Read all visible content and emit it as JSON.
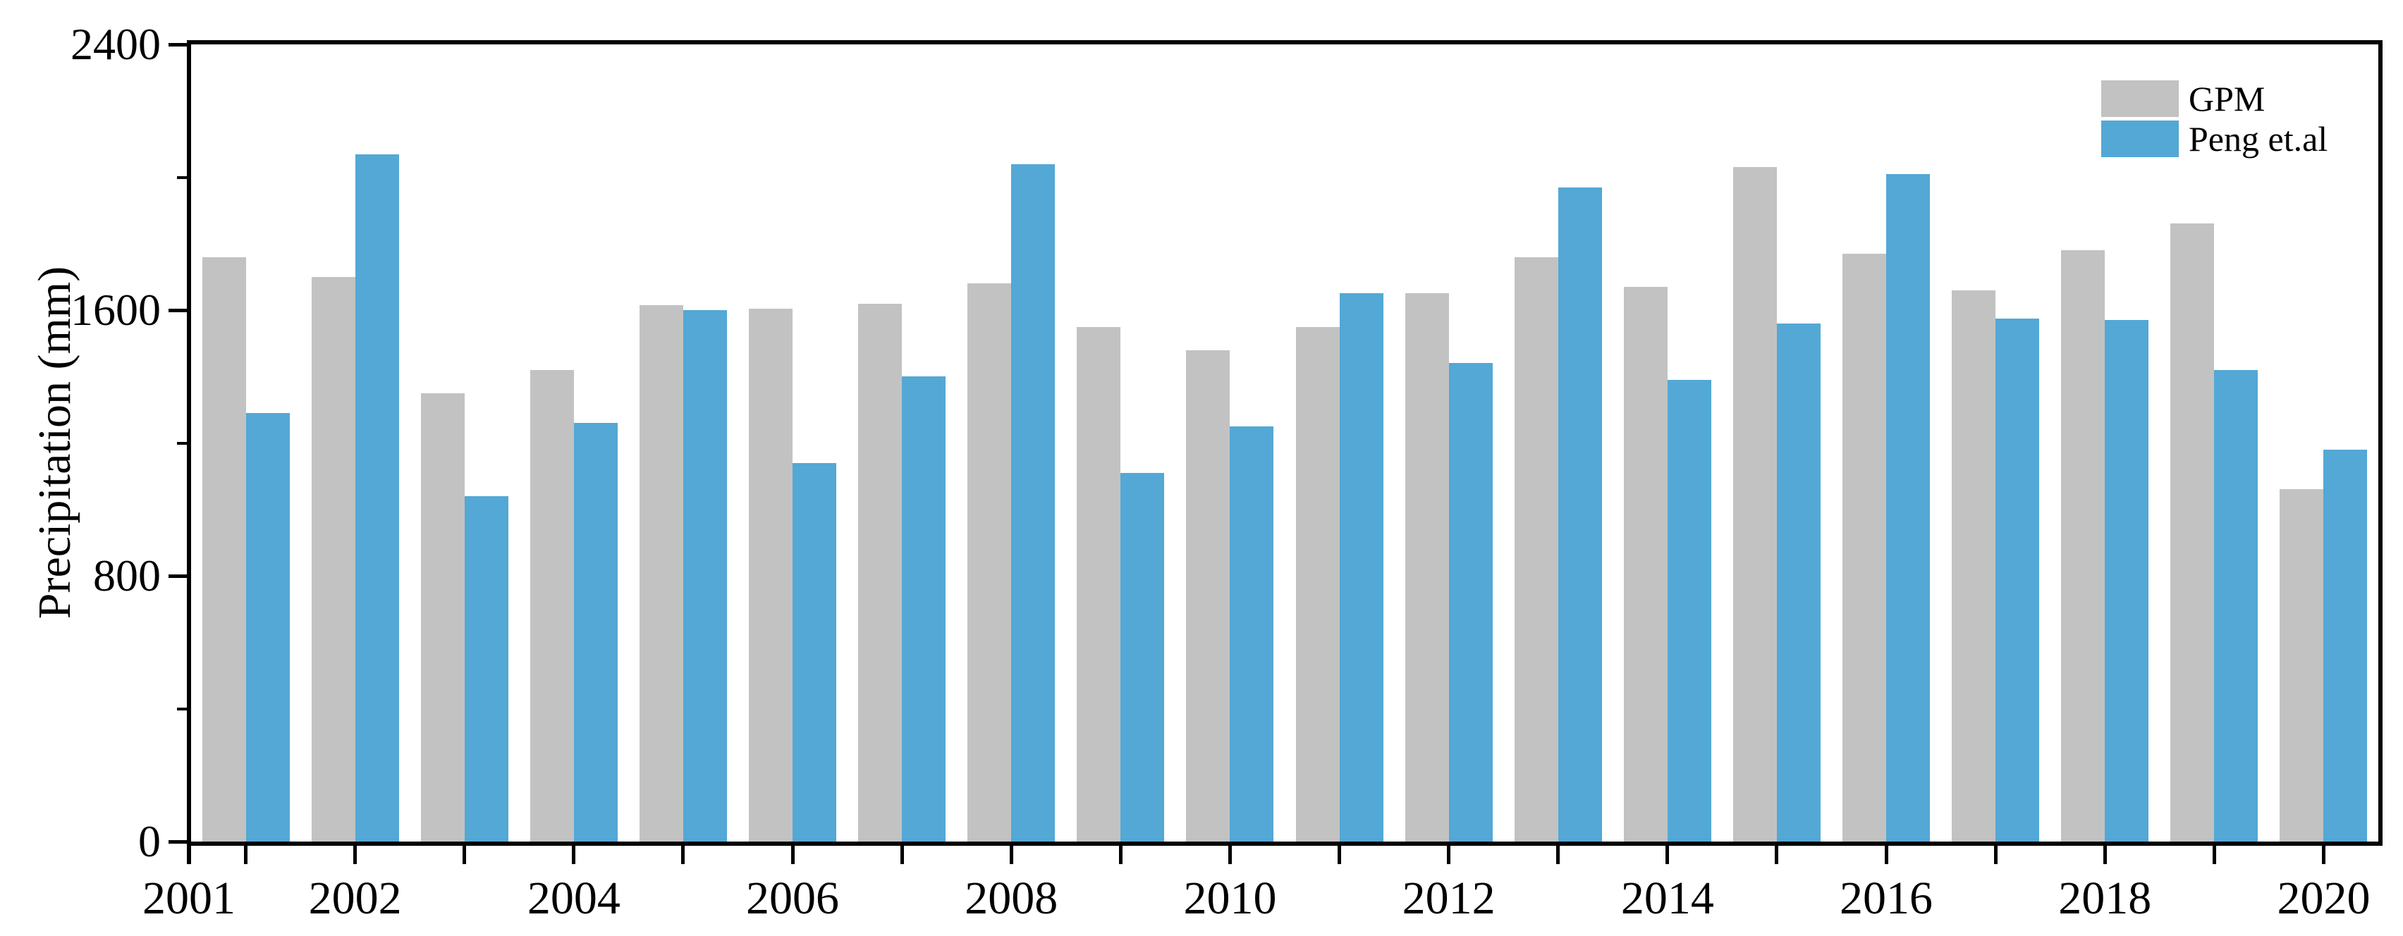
{
  "figure": {
    "ylabel": "Precipitation (mm)",
    "background": "#ffffff",
    "axis_color": "#000000"
  },
  "chart_data": {
    "type": "bar",
    "title": "",
    "xlabel": "",
    "ylabel": "Precipitation (mm)",
    "ylim": [
      0,
      2400
    ],
    "y_major_ticks": [
      0,
      800,
      1600,
      2400
    ],
    "y_minor_ticks": [
      400,
      1200,
      2000
    ],
    "grid": false,
    "legend_position": "top-right",
    "categories": [
      2001,
      2002,
      2003,
      2004,
      2005,
      2006,
      2007,
      2008,
      2009,
      2010,
      2011,
      2012,
      2013,
      2014,
      2015,
      2016,
      2017,
      2018,
      2019,
      2020
    ],
    "x_labeled_years": [
      2001,
      2002,
      2004,
      2006,
      2008,
      2010,
      2012,
      2014,
      2016,
      2018,
      2020
    ],
    "series": [
      {
        "name": "GPM",
        "color": "#c2c2c2",
        "values": [
          1760,
          1700,
          1350,
          1420,
          1615,
          1605,
          1620,
          1680,
          1550,
          1480,
          1550,
          1650,
          1760,
          1670,
          2030,
          1770,
          1660,
          1780,
          1860,
          1060
        ]
      },
      {
        "name": "Peng et.al",
        "color": "#53a8d5",
        "values": [
          1290,
          2070,
          1040,
          1260,
          1600,
          1140,
          1400,
          2040,
          1110,
          1250,
          1650,
          1440,
          1970,
          1390,
          1560,
          2010,
          1575,
          1570,
          1420,
          1180
        ]
      }
    ]
  }
}
